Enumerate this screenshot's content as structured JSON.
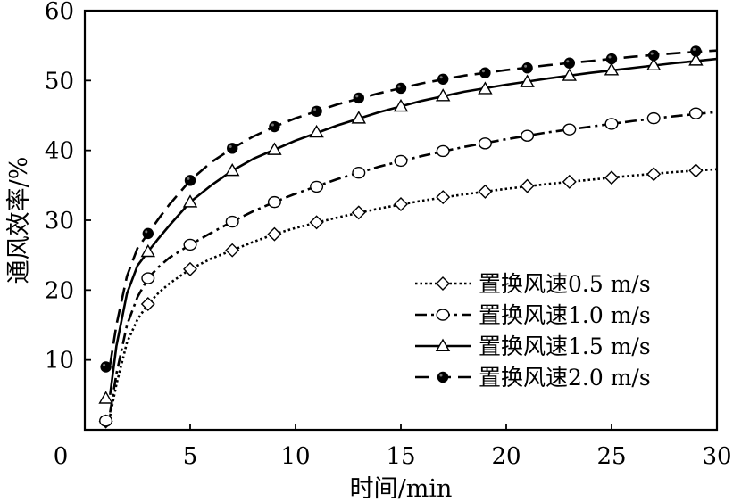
{
  "chart_data": {
    "type": "line",
    "xlabel": "时间/min",
    "ylabel": "通风效率/%",
    "xlim": [
      0,
      30
    ],
    "ylim": [
      0,
      60
    ],
    "xticks": [
      0,
      5,
      10,
      15,
      20,
      25,
      30
    ],
    "yticks": [
      10,
      20,
      30,
      40,
      50,
      60
    ],
    "grid": false,
    "legend_position": "lower-right",
    "series": [
      {
        "name": "置换风速0.5 m/s",
        "line_style": "dotted",
        "marker": "diamond-open",
        "color": "#000000",
        "x": [
          1,
          3,
          5,
          7,
          9,
          11,
          13,
          15,
          17,
          19,
          21,
          23,
          25,
          27,
          29
        ],
        "y": [
          1.2,
          18,
          23,
          25.7,
          28,
          29.7,
          31.1,
          32.3,
          33.3,
          34.1,
          34.9,
          35.5,
          36.1,
          36.6,
          37.1
        ],
        "curve": {
          "x": [
            1.2,
            1.5,
            2,
            2.5,
            3,
            3.5,
            4,
            5,
            6,
            7,
            8,
            9,
            10,
            12,
            14,
            16,
            18,
            20,
            22,
            24,
            26,
            28,
            30
          ],
          "y": [
            2,
            6.5,
            12.5,
            15.8,
            18,
            19.6,
            20.9,
            23,
            24.5,
            25.7,
            26.9,
            28,
            28.9,
            30.4,
            31.7,
            32.8,
            33.7,
            34.5,
            35.2,
            35.8,
            36.4,
            36.9,
            37.3
          ]
        }
      },
      {
        "name": "置换风速1.0 m/s",
        "line_style": "dash-dot",
        "marker": "circle-open",
        "color": "#000000",
        "x": [
          1,
          3,
          5,
          7,
          9,
          11,
          13,
          15,
          17,
          19,
          21,
          23,
          25,
          27,
          29
        ],
        "y": [
          1.3,
          21.7,
          26.5,
          29.8,
          32.6,
          34.8,
          36.8,
          38.5,
          39.9,
          41,
          42.1,
          43,
          43.8,
          44.6,
          45.3
        ],
        "curve": {
          "x": [
            1.2,
            1.5,
            2,
            2.5,
            3,
            3.5,
            4,
            5,
            6,
            7,
            8,
            9,
            10,
            12,
            14,
            16,
            18,
            20,
            22,
            24,
            26,
            28,
            30
          ],
          "y": [
            2.5,
            8,
            15,
            19,
            21.7,
            23.3,
            24.6,
            26.5,
            28.2,
            29.8,
            31.3,
            32.6,
            33.8,
            35.9,
            37.7,
            39.2,
            40.5,
            41.6,
            42.6,
            43.4,
            44.2,
            44.9,
            45.5
          ]
        }
      },
      {
        "name": "置换风速1.5 m/s",
        "line_style": "solid",
        "marker": "triangle-open",
        "color": "#000000",
        "x": [
          1,
          3,
          5,
          7,
          9,
          11,
          13,
          15,
          17,
          19,
          21,
          23,
          25,
          27,
          29
        ],
        "y": [
          4.5,
          25.5,
          32.6,
          37.1,
          40.1,
          42.6,
          44.6,
          46.3,
          47.8,
          48.8,
          49.8,
          50.7,
          51.5,
          52.2,
          52.9
        ],
        "curve": {
          "x": [
            1.2,
            1.5,
            2,
            2.5,
            3,
            3.5,
            4,
            5,
            6,
            7,
            8,
            9,
            10,
            12,
            14,
            16,
            18,
            20,
            22,
            24,
            26,
            28,
            30
          ],
          "y": [
            5,
            12,
            19.5,
            23.5,
            25.5,
            27.4,
            29.2,
            32.6,
            35,
            37.1,
            38.8,
            40.1,
            41.4,
            43.6,
            45.5,
            47.1,
            48.4,
            49.4,
            50.3,
            51.1,
            51.8,
            52.5,
            53.1
          ]
        }
      },
      {
        "name": "置换风速2.0 m/s",
        "line_style": "dashed",
        "marker": "circle-filled",
        "color": "#000000",
        "x": [
          1,
          3,
          5,
          7,
          9,
          11,
          13,
          15,
          17,
          19,
          21,
          23,
          25,
          27,
          29
        ],
        "y": [
          9,
          28.1,
          35.7,
          40.3,
          43.4,
          45.6,
          47.5,
          48.9,
          50.2,
          51.1,
          51.8,
          52.5,
          53.1,
          53.6,
          54.2
        ],
        "curve": {
          "x": [
            1.2,
            1.5,
            2,
            2.5,
            3,
            3.5,
            4,
            5,
            6,
            7,
            8,
            9,
            10,
            12,
            14,
            16,
            18,
            20,
            22,
            24,
            26,
            28,
            30
          ],
          "y": [
            9.3,
            15,
            22,
            26,
            28.1,
            30.2,
            32.2,
            35.7,
            38.3,
            40.3,
            42,
            43.4,
            44.6,
            46.6,
            48.2,
            49.6,
            50.7,
            51.5,
            52.2,
            52.8,
            53.4,
            53.9,
            54.3
          ]
        }
      }
    ]
  }
}
